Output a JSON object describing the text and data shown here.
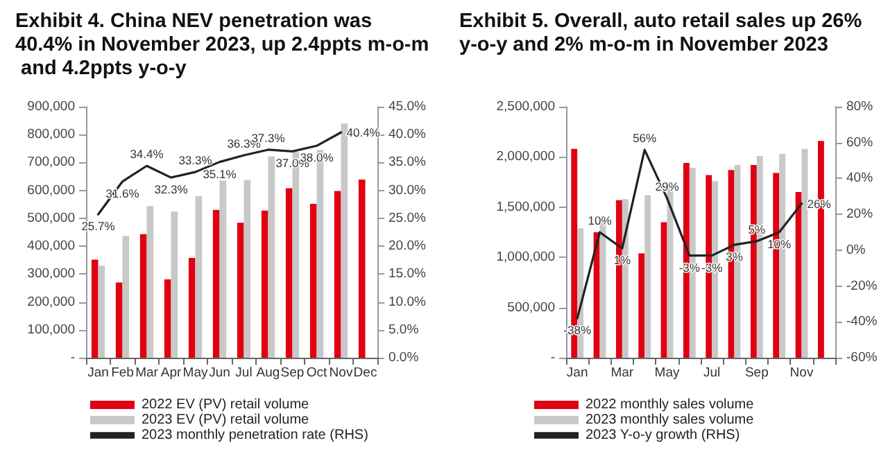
{
  "chart_data": [
    {
      "type": "bar",
      "title": "Exhibit 4. China NEV penetration was 40.4% in November 2023, up 2.4ppts m-o-m and 4.2ppts y-o-y",
      "categories": [
        "Jan",
        "Feb",
        "Mar",
        "Apr",
        "May",
        "Jun",
        "Jul",
        "Aug",
        "Sep",
        "Oct",
        "Nov",
        "Dec"
      ],
      "series": [
        {
          "name": "2022 EV (PV) retail volume",
          "color": "#e00012",
          "values": [
            352000,
            270000,
            443000,
            281000,
            358000,
            530000,
            484000,
            528000,
            608000,
            552000,
            598000,
            639000
          ]
        },
        {
          "name": "2023 EV (PV) retail volume",
          "color": "#c8c8c8",
          "values": [
            330000,
            437000,
            544000,
            524000,
            579000,
            635000,
            638000,
            722000,
            738000,
            745000,
            840000,
            null
          ]
        },
        {
          "name": "2023 monthly penetration rate (RHS)",
          "type": "line",
          "axis": "y2",
          "color": "#222222",
          "values": [
            25.7,
            31.6,
            34.4,
            32.3,
            33.3,
            35.1,
            36.3,
            37.3,
            37.0,
            38.0,
            40.4,
            null
          ],
          "value_labels": [
            "25.7%",
            "31.6%",
            "34.4%",
            "32.3%",
            "33.3%",
            "35.1%",
            "36.3%",
            "37.3%",
            "37.0%",
            "38.0%",
            "40.4%",
            null
          ]
        }
      ],
      "ylim": [
        0,
        900000
      ],
      "yticks": [
        {
          "value": 0,
          "label": "-"
        },
        {
          "value": 100000,
          "label": "100,000"
        },
        {
          "value": 200000,
          "label": "200,000"
        },
        {
          "value": 300000,
          "label": "300,000"
        },
        {
          "value": 400000,
          "label": "400,000"
        },
        {
          "value": 500000,
          "label": "500,000"
        },
        {
          "value": 600000,
          "label": "600,000"
        },
        {
          "value": 700000,
          "label": "700,000"
        },
        {
          "value": 800000,
          "label": "800,000"
        },
        {
          "value": 900000,
          "label": "900,000"
        }
      ],
      "y2lim": [
        0,
        45
      ],
      "y2ticks": [
        {
          "value": 0,
          "label": "0.0%"
        },
        {
          "value": 5,
          "label": "5.0%"
        },
        {
          "value": 10,
          "label": "10.0%"
        },
        {
          "value": 15,
          "label": "15.0%"
        },
        {
          "value": 20,
          "label": "20.0%"
        },
        {
          "value": 25,
          "label": "25.0%"
        },
        {
          "value": 30,
          "label": "30.0%"
        },
        {
          "value": 35,
          "label": "35.0%"
        },
        {
          "value": 40,
          "label": "40.0%"
        },
        {
          "value": 45,
          "label": "45.0%"
        }
      ],
      "grid": false,
      "legend": "bottom"
    },
    {
      "type": "bar",
      "title": "Exhibit 5. Overall, auto retail sales up 26% y-o-y and 2% m-o-m in November 2023",
      "categories": [
        "Jan",
        null,
        "Mar",
        null,
        "May",
        null,
        "Jul",
        null,
        "Sep",
        null,
        "Nov",
        null
      ],
      "series": [
        {
          "name": "2022 monthly sales volume",
          "color": "#e00012",
          "values": [
            2080000,
            1250000,
            1570000,
            1040000,
            1350000,
            1940000,
            1820000,
            1870000,
            1920000,
            1840000,
            1650000,
            2160000
          ]
        },
        {
          "name": "2023 monthly sales volume",
          "color": "#c8c8c8",
          "values": [
            1290000,
            1380000,
            1580000,
            1620000,
            1740000,
            1890000,
            1760000,
            1920000,
            2010000,
            2030000,
            2080000,
            null
          ]
        },
        {
          "name": "2023 Y-o-y growth (RHS)",
          "type": "line",
          "axis": "y2",
          "color": "#222222",
          "values": [
            -38,
            10,
            1,
            56,
            29,
            -3,
            -3,
            3,
            5,
            10,
            26,
            null
          ],
          "value_labels": [
            "-38%",
            "10%",
            "1%",
            "56%",
            "29%",
            "-3%",
            "-3%",
            "3%",
            "5%",
            "10%",
            "26%",
            null
          ]
        }
      ],
      "ylim": [
        0,
        2500000
      ],
      "yticks": [
        {
          "value": 0,
          "label": "-"
        },
        {
          "value": 500000,
          "label": "500,000"
        },
        {
          "value": 1000000,
          "label": "1,000,000"
        },
        {
          "value": 1500000,
          "label": "1,500,000"
        },
        {
          "value": 2000000,
          "label": "2,000,000"
        },
        {
          "value": 2500000,
          "label": "2,500,000"
        }
      ],
      "y2lim": [
        -60,
        80
      ],
      "y2ticks": [
        {
          "value": -60,
          "label": "-60%"
        },
        {
          "value": -40,
          "label": "-40%"
        },
        {
          "value": -20,
          "label": "-20%"
        },
        {
          "value": 0,
          "label": "0%"
        },
        {
          "value": 20,
          "label": "20%"
        },
        {
          "value": 40,
          "label": "40%"
        },
        {
          "value": 60,
          "label": "60%"
        },
        {
          "value": 80,
          "label": "80%"
        }
      ],
      "grid": false,
      "legend": "bottom"
    }
  ]
}
